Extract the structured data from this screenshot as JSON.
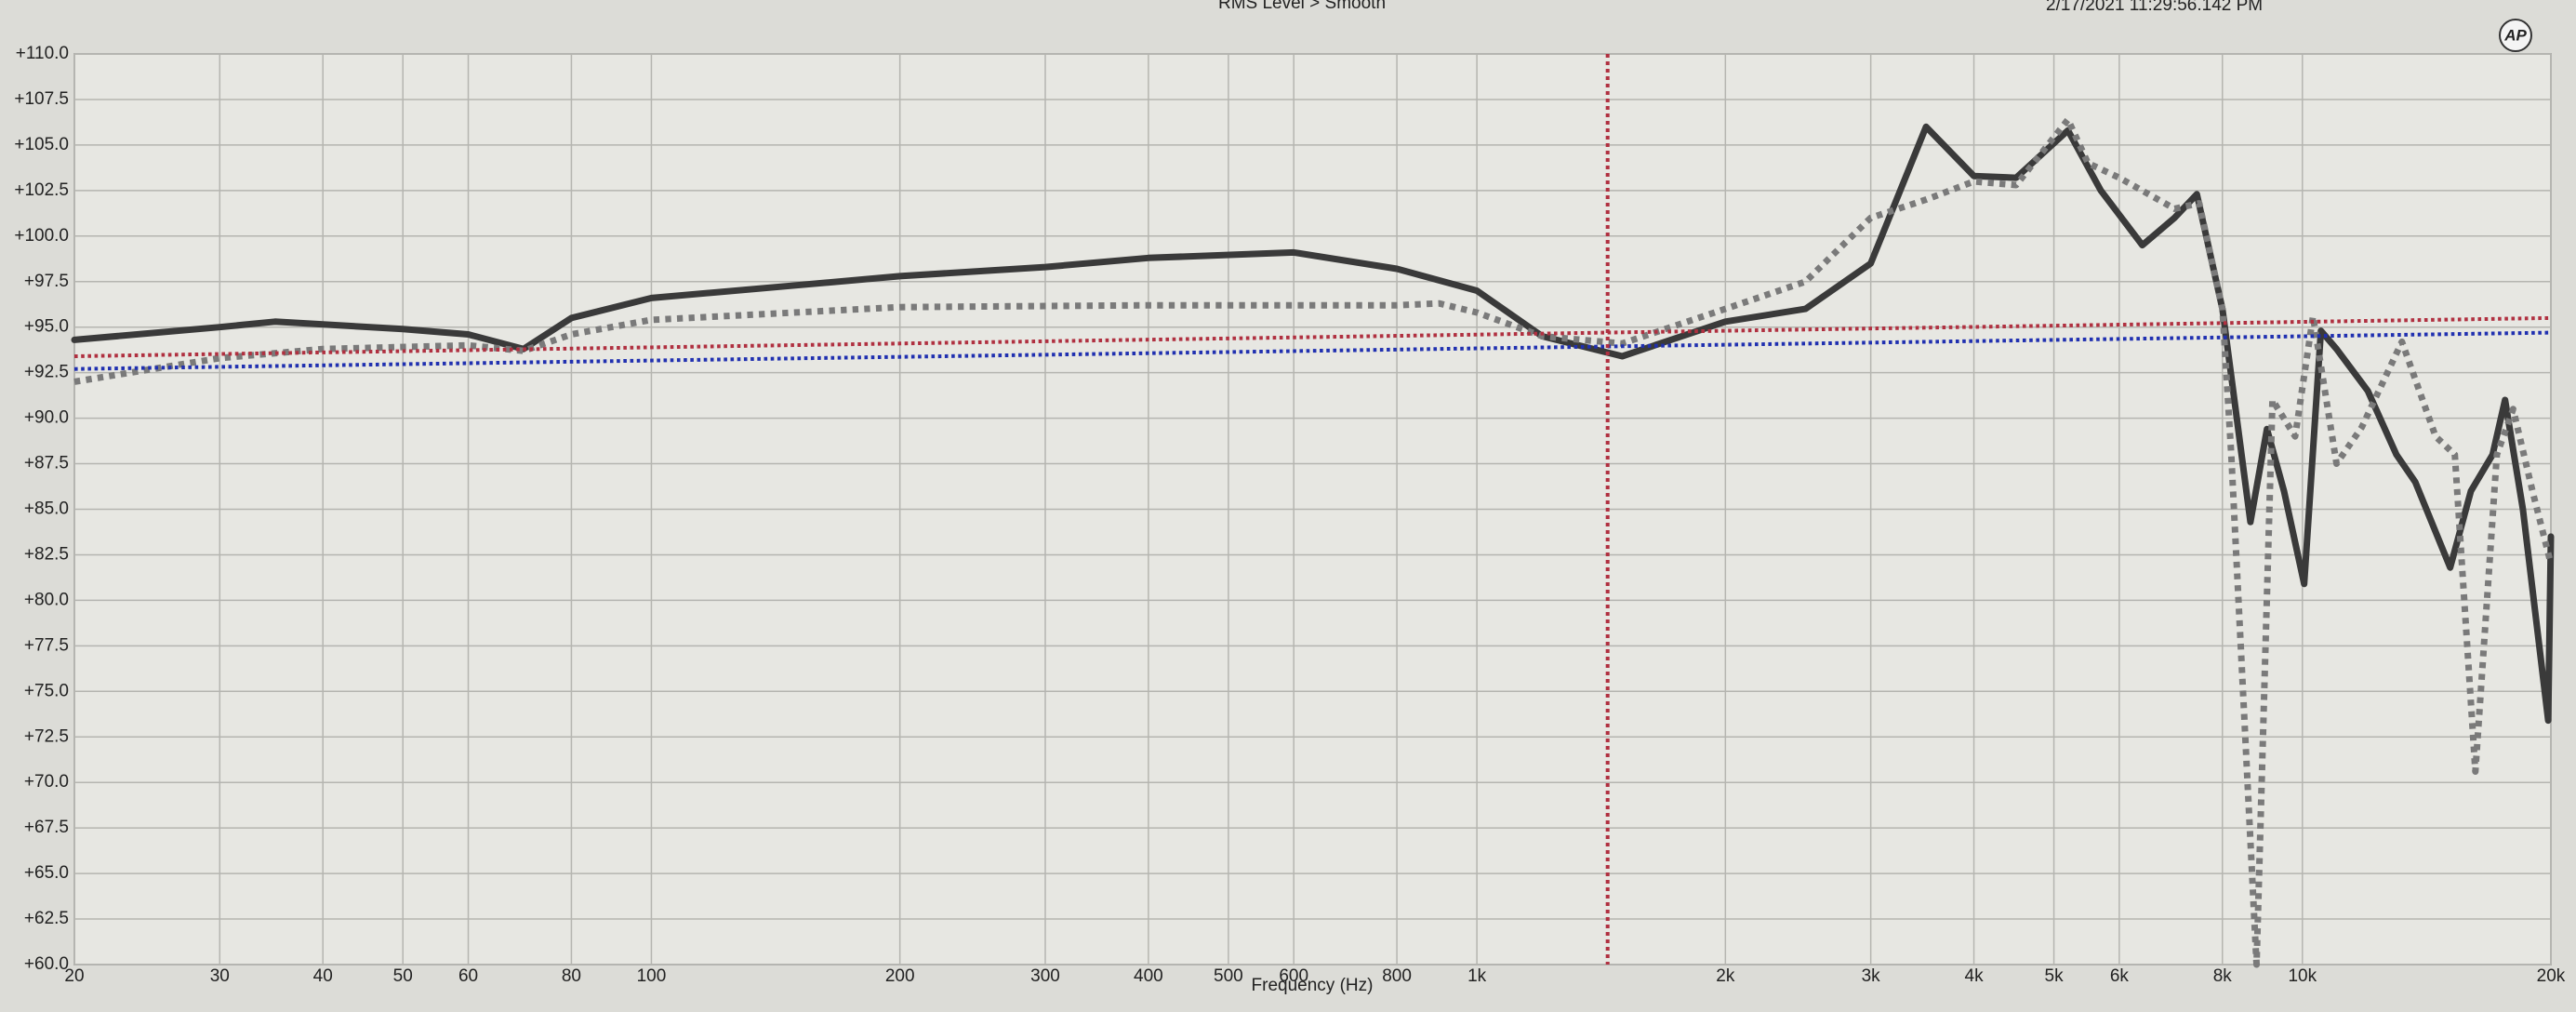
{
  "chart_data": {
    "type": "line",
    "title": "RMS Level > Smooth",
    "timestamp": "2/17/2021 11:29:56.142 PM",
    "logo": "AP",
    "x_label": "Frequency (Hz)",
    "xscale": "log",
    "grid": true,
    "xlim": [
      20,
      20000
    ],
    "ylim": [
      60,
      110
    ],
    "xticks": [
      20,
      30,
      40,
      50,
      60,
      80,
      100,
      200,
      300,
      400,
      500,
      600,
      800,
      {
        "value": 1000,
        "label": "1k"
      },
      {
        "value": 2000,
        "label": "2k"
      },
      {
        "value": 3000,
        "label": "3k"
      },
      {
        "value": 4000,
        "label": "4k"
      },
      {
        "value": 5000,
        "label": "5k"
      },
      {
        "value": 6000,
        "label": "6k"
      },
      {
        "value": 8000,
        "label": "8k"
      },
      {
        "value": 10000,
        "label": "10k"
      },
      {
        "value": 20000,
        "label": "20k"
      }
    ],
    "yticks": [
      {
        "value": 60,
        "label": "+60.0"
      },
      {
        "value": 62.5,
        "label": "+62.5"
      },
      {
        "value": 65,
        "label": "+65.0"
      },
      {
        "value": 67.5,
        "label": "+67.5"
      },
      {
        "value": 70,
        "label": "+70.0"
      },
      {
        "value": 72.5,
        "label": "+72.5"
      },
      {
        "value": 75,
        "label": "+75.0"
      },
      {
        "value": 77.5,
        "label": "+77.5"
      },
      {
        "value": 80,
        "label": "+80.0"
      },
      {
        "value": 82.5,
        "label": "+82.5"
      },
      {
        "value": 85,
        "label": "+85.0"
      },
      {
        "value": 87.5,
        "label": "+87.5"
      },
      {
        "value": 90,
        "label": "+90.0"
      },
      {
        "value": 92.5,
        "label": "+92.5"
      },
      {
        "value": 95,
        "label": "+95.0"
      },
      {
        "value": 97.5,
        "label": "+97.5"
      },
      {
        "value": 100,
        "label": "+100.0"
      },
      {
        "value": 102.5,
        "label": "+102.5"
      },
      {
        "value": 105,
        "label": "+105.0"
      },
      {
        "value": 107.5,
        "label": "+107.5"
      },
      {
        "value": 110,
        "label": "+110.0"
      }
    ],
    "cursor_x": 1440,
    "cursor_color": "#b03040",
    "series": [
      {
        "color": "#3a3a3a",
        "dash": "solid",
        "width": 7,
        "x": [
          20,
          30,
          35,
          50,
          60,
          70,
          80,
          100,
          150,
          200,
          300,
          400,
          600,
          800,
          1000,
          1200,
          1500,
          2000,
          2500,
          3000,
          3500,
          4000,
          4500,
          5200,
          5700,
          6400,
          7000,
          7450,
          8000,
          8650,
          9060,
          9500,
          10050,
          10530,
          11000,
          12000,
          13000,
          13700,
          15100,
          16000,
          17000,
          17600,
          18500,
          19850,
          20000
        ],
        "values": [
          94.3,
          95.0,
          95.3,
          94.9,
          94.6,
          93.8,
          95.5,
          96.6,
          97.3,
          97.8,
          98.3,
          98.8,
          99.1,
          98.2,
          97.0,
          94.5,
          93.4,
          95.3,
          96.0,
          98.5,
          106.0,
          103.3,
          103.2,
          105.8,
          102.5,
          99.5,
          101.0,
          102.3,
          96.0,
          84.3,
          89.4,
          86.0,
          80.9,
          94.8,
          93.8,
          91.5,
          88.0,
          86.5,
          81.8,
          86.0,
          88.0,
          91.0,
          85.0,
          73.4,
          83.5
        ]
      },
      {
        "color": "#7a7a7a",
        "dash": "dotted",
        "width": 7,
        "x": [
          20,
          30,
          40,
          60,
          70,
          80,
          100,
          200,
          400,
          800,
          900,
          1000,
          1200,
          1500,
          2000,
          2500,
          3000,
          3500,
          4000,
          4500,
          5200,
          5500,
          6000,
          7000,
          7500,
          8000,
          8200,
          8800,
          9200,
          9800,
          10300,
          11000,
          11800,
          13200,
          14500,
          15300,
          16200,
          17200,
          18000,
          19000,
          20000
        ],
        "values": [
          92.0,
          93.3,
          93.8,
          94.0,
          93.7,
          94.6,
          95.4,
          96.1,
          96.2,
          96.2,
          96.3,
          95.8,
          94.5,
          94.1,
          96.0,
          97.5,
          101.0,
          102.0,
          103.0,
          102.8,
          106.4,
          104.0,
          103.2,
          101.5,
          101.8,
          96.0,
          88.0,
          60.0,
          91.0,
          89.0,
          95.6,
          87.5,
          89.5,
          94.2,
          89.0,
          88.0,
          70.6,
          88.0,
          90.5,
          86.0,
          82.0
        ]
      },
      {
        "color": "#b03040",
        "dash": "dotted",
        "width": 4,
        "x": [
          20,
          20000
        ],
        "values": [
          93.4,
          95.5
        ]
      },
      {
        "color": "#2030b0",
        "dash": "dotted",
        "width": 4,
        "x": [
          20,
          20000
        ],
        "values": [
          92.7,
          94.7
        ]
      }
    ]
  }
}
